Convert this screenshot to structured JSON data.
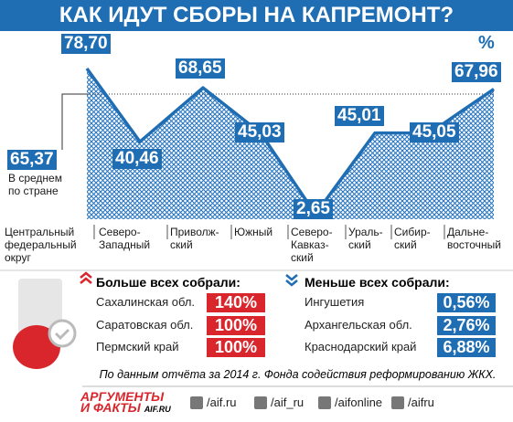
{
  "chart_data": {
    "type": "area",
    "title": "КАК ИДУТ СБОРЫ НА КАПРЕМОНТ?",
    "unit_label": "%",
    "categories": [
      "Центральный\nфедеральный\nокруг",
      "Северо-\nЗападный",
      "Приволж-\nский",
      "Южный",
      "Северо-\nКавказ-\nский",
      "Ураль-\nский",
      "Сибир-\nский",
      "Дальне-\nвосточный"
    ],
    "values": [
      78.7,
      40.46,
      68.65,
      45.03,
      2.65,
      45.01,
      45.05,
      67.96
    ],
    "value_labels": [
      "78,70",
      "40,46",
      "68,65",
      "45,03",
      "2,65",
      "45,01",
      "45,05",
      "67,96"
    ],
    "color": "#1f6db3",
    "average": {
      "value": 65.37,
      "label": "65,37",
      "text": "В среднем\nпо стране"
    }
  },
  "most": {
    "title": "Больше всех собрали:",
    "rows": [
      {
        "name": "Сахалинская обл.",
        "value": "140%"
      },
      {
        "name": "Саратовская обл.",
        "value": "100%"
      },
      {
        "name": "Пермский край",
        "value": "100%"
      }
    ]
  },
  "least": {
    "title": "Меньше всех собрали:",
    "rows": [
      {
        "name": "Ингушетия",
        "value": "0,56%"
      },
      {
        "name": "Архангельская обл.",
        "value": "2,76%"
      },
      {
        "name": "Краснодарский край",
        "value": "6,88%"
      }
    ]
  },
  "note": "По данным отчёта за 2014 г. Фонда содействия реформированию ЖКХ.",
  "logo": {
    "line1": "АРГУМЕНТЫ",
    "line2": "И ФАКТЫ",
    "site": "AIF.RU"
  },
  "social": [
    "/aif.ru",
    "/aif_ru",
    "/aifonline",
    "/aifru"
  ]
}
